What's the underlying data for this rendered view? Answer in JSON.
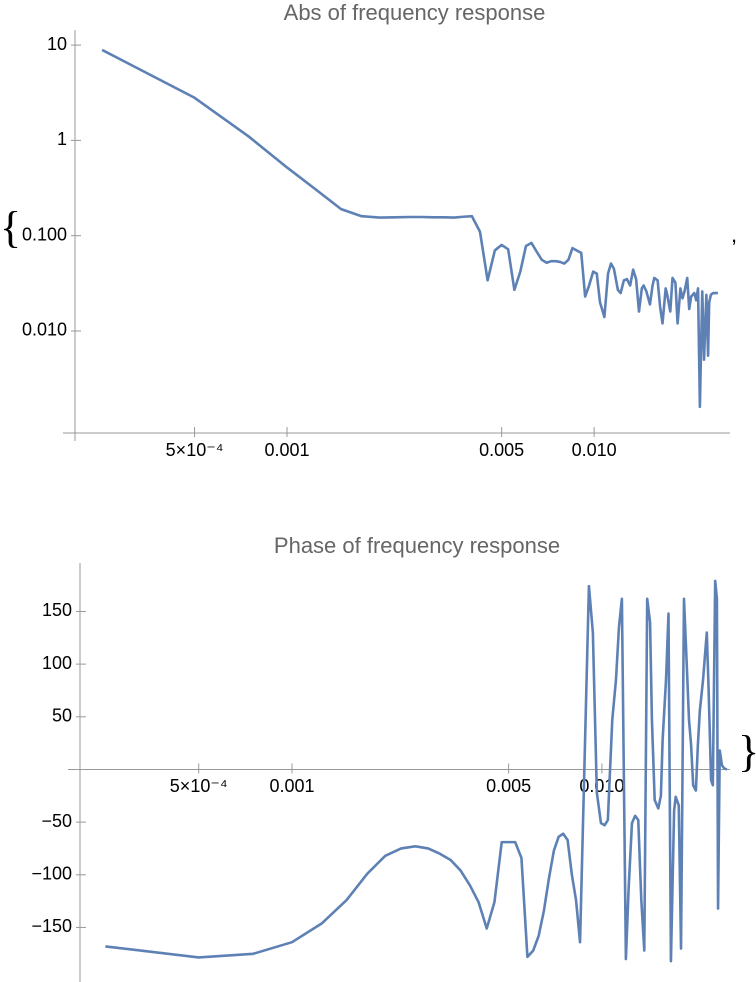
{
  "wrapper": {
    "open": "{",
    "separator": ",",
    "close": "}"
  },
  "chart_data": [
    {
      "type": "line",
      "title": "Abs of frequency response",
      "color": "#5e81b5",
      "xlog": true,
      "ylog": true,
      "xlim": [
        0.000204,
        0.0277
      ],
      "ylim": [
        0.00085,
        14.4
      ],
      "xticks": [
        {
          "value": 0.0005,
          "label": "5×10⁻⁴"
        },
        0.001,
        0.005,
        {
          "value": 0.01,
          "label": "0.010"
        }
      ],
      "yticks": [
        10,
        1,
        {
          "value": 0.1,
          "label": "0.100"
        },
        {
          "value": 0.01,
          "label": "0.010"
        }
      ],
      "x": [
        0.00025,
        0.0005,
        0.00075,
        0.001,
        0.00125,
        0.0015,
        0.00175,
        0.002,
        0.00225,
        0.0025,
        0.00275,
        0.003,
        0.00325,
        0.0035,
        0.00375,
        0.004,
        0.00425,
        0.0045,
        0.00475,
        0.005,
        0.00525,
        0.0055,
        0.00575,
        0.006,
        0.00625,
        0.0065,
        0.00675,
        0.007,
        0.00725,
        0.0075,
        0.00775,
        0.008,
        0.00825,
        0.0085,
        0.00908,
        0.00935,
        0.00963,
        0.00993,
        0.0102,
        0.01045,
        0.0108,
        0.0111,
        0.01135,
        0.0116,
        0.01195,
        0.0122,
        0.0125,
        0.0128,
        0.0131,
        0.0134,
        0.0137,
        0.014,
        0.0143,
        0.0145,
        0.0148,
        0.0152,
        0.0155,
        0.0157,
        0.0161,
        0.0164,
        0.0167,
        0.0171,
        0.0173,
        0.0177,
        0.018,
        0.0184,
        0.0187,
        0.0191,
        0.0194,
        0.0197,
        0.0201,
        0.0204,
        0.0207,
        0.0212,
        0.0215,
        0.0218,
        0.0221,
        0.0225,
        0.0228,
        0.0232,
        0.0235,
        0.0237,
        0.024,
        0.0244,
        0.0248,
        0.0253
      ],
      "values": [
        8.9,
        2.8,
        1.1,
        0.52,
        0.3,
        0.19,
        0.16,
        0.155,
        0.156,
        0.157,
        0.157,
        0.156,
        0.156,
        0.155,
        0.158,
        0.16,
        0.11,
        0.034,
        0.07,
        0.08,
        0.072,
        0.027,
        0.042,
        0.078,
        0.084,
        0.068,
        0.056,
        0.052,
        0.054,
        0.054,
        0.053,
        0.051,
        0.056,
        0.074,
        0.066,
        0.023,
        0.03,
        0.042,
        0.04,
        0.02,
        0.014,
        0.04,
        0.051,
        0.045,
        0.027,
        0.025,
        0.034,
        0.035,
        0.03,
        0.044,
        0.035,
        0.016,
        0.028,
        0.03,
        0.026,
        0.019,
        0.03,
        0.036,
        0.034,
        0.018,
        0.012,
        0.028,
        0.024,
        0.016,
        0.036,
        0.032,
        0.012,
        0.028,
        0.022,
        0.026,
        0.036,
        0.017,
        0.023,
        0.025,
        0.021,
        0.028,
        0.0016,
        0.026,
        0.005,
        0.024,
        0.0055,
        0.02,
        0.024,
        0.025,
        0.025,
        0.025
      ]
    },
    {
      "type": "line",
      "title": "Phase of frequency response",
      "color": "#5e81b5",
      "xlog": true,
      "ylog": false,
      "xlim": [
        0.000207,
        0.0259
      ],
      "ylim": [
        -198,
        196
      ],
      "xticks": [
        {
          "value": 0.0005,
          "label": "5×10⁻⁴"
        },
        0.001,
        0.005,
        {
          "value": 0.01,
          "label": "0.010"
        }
      ],
      "yticks": [
        {
          "value": -150,
          "label": "−150"
        },
        {
          "value": -100,
          "label": "−100"
        },
        {
          "value": -50,
          "label": "−50"
        },
        50,
        100,
        150
      ],
      "x": [
        0.00025,
        0.0005,
        0.00075,
        0.001,
        0.00125,
        0.0015,
        0.00175,
        0.002,
        0.00225,
        0.0025,
        0.00275,
        0.003,
        0.00325,
        0.0035,
        0.00375,
        0.004,
        0.00425,
        0.0045,
        0.00475,
        0.005,
        0.00525,
        0.0055,
        0.00575,
        0.006,
        0.00625,
        0.0065,
        0.00675,
        0.007,
        0.00725,
        0.0075,
        0.00775,
        0.008,
        0.00825,
        0.0085,
        0.00908,
        0.00935,
        0.00963,
        0.00993,
        0.0102,
        0.01045,
        0.0108,
        0.0111,
        0.01135,
        0.0116,
        0.01195,
        0.0122,
        0.0125,
        0.0128,
        0.0131,
        0.0134,
        0.0137,
        0.014,
        0.0143,
        0.0145,
        0.0148,
        0.0152,
        0.0155,
        0.0157,
        0.0161,
        0.0164,
        0.0167,
        0.0171,
        0.0173,
        0.0177,
        0.018,
        0.0184,
        0.0187,
        0.0191,
        0.0194,
        0.0197,
        0.0201,
        0.0204,
        0.0207,
        0.0212,
        0.0215,
        0.0218,
        0.0221,
        0.0225,
        0.0228,
        0.0232,
        0.0235,
        0.0237,
        0.024,
        0.0244,
        0.0248,
        0.0253
      ],
      "values": [
        -168,
        -178.5,
        -175,
        -164,
        -146,
        -124,
        -99,
        -82,
        -75,
        -73,
        -75,
        -80,
        -86,
        -96,
        -110,
        -126,
        -151,
        -126,
        -69,
        -69,
        -69,
        -84,
        -178,
        -172,
        -158,
        -134,
        -103,
        -77,
        -64,
        -61,
        -67,
        -100,
        -124,
        -164,
        174,
        130,
        -22,
        -51,
        -53,
        -48,
        47,
        85,
        135,
        162,
        -180,
        -112,
        -51,
        -44,
        -48,
        -124,
        -172,
        162,
        140,
        47,
        -29,
        -37,
        -25,
        28,
        85,
        148,
        -182,
        -39,
        -26,
        -34,
        -170,
        162,
        113,
        47,
        23,
        -15,
        -20,
        23,
        56,
        85,
        108,
        130,
        75,
        -10,
        -15,
        179,
        162,
        -132,
        18,
        4,
        1,
        0
      ]
    }
  ]
}
